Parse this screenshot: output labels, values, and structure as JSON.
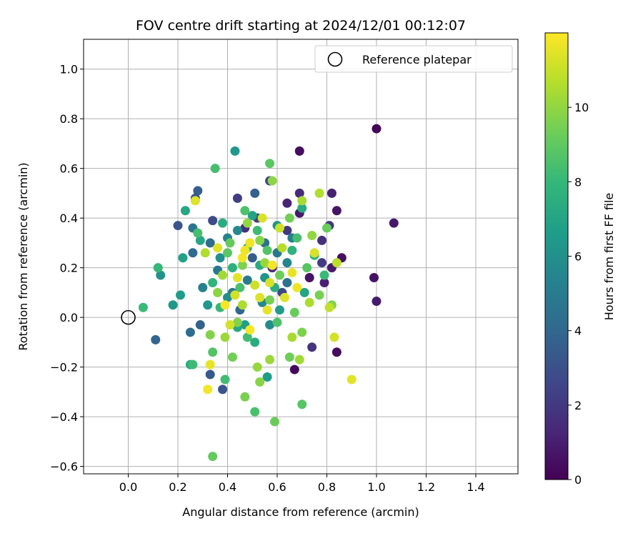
{
  "chart_data": {
    "type": "scatter",
    "title": "FOV centre drift starting at 2024/12/01 00:12:07",
    "xlabel": "Angular distance from reference (arcmin)",
    "ylabel": "Rotation from reference (arcmin)",
    "xlim": [
      -0.18,
      1.57
    ],
    "ylim": [
      -0.63,
      1.12
    ],
    "xticks": [
      0.0,
      0.2,
      0.4,
      0.6,
      0.8,
      1.0,
      1.2,
      1.4
    ],
    "xtick_labels": [
      "0.0",
      "0.2",
      "0.4",
      "0.6",
      "0.8",
      "1.0",
      "1.2",
      "1.4"
    ],
    "yticks": [
      -0.6,
      -0.4,
      -0.2,
      0.0,
      0.2,
      0.4,
      0.6,
      0.8,
      1.0
    ],
    "ytick_labels": [
      "−0.6",
      "−0.4",
      "−0.2",
      "0.0",
      "0.2",
      "0.4",
      "0.6",
      "0.8",
      "1.0"
    ],
    "grid": true,
    "legend": {
      "placement": "top-right",
      "entries": [
        {
          "label": "Reference platepar",
          "marker": "open-circle"
        }
      ]
    },
    "reference_point": {
      "x": 0.0,
      "y": 0.0
    },
    "colorbar": {
      "label": "Hours from first FF file",
      "colormap": "viridis",
      "range": [
        0,
        12
      ],
      "ticks": [
        0,
        2,
        4,
        6,
        8,
        10
      ],
      "tick_labels": [
        "0",
        "2",
        "4",
        "6",
        "8",
        "10"
      ]
    },
    "colormap_stops": [
      "#440154",
      "#482878",
      "#3e4989",
      "#31688e",
      "#26828e",
      "#1f9e89",
      "#35b779",
      "#6ece58",
      "#b5de2b",
      "#fde725"
    ],
    "points": [
      {
        "x": 1.0,
        "y": 0.76,
        "h": 0.1
      },
      {
        "x": 0.69,
        "y": 0.67,
        "h": 0.4
      },
      {
        "x": 1.07,
        "y": 0.38,
        "h": 0.8
      },
      {
        "x": 0.99,
        "y": 0.16,
        "h": 0.6
      },
      {
        "x": 1.0,
        "y": 0.065,
        "h": 0.9
      },
      {
        "x": 0.84,
        "y": 0.43,
        "h": 0.7
      },
      {
        "x": 0.82,
        "y": 0.5,
        "h": 1.1
      },
      {
        "x": 0.86,
        "y": 0.24,
        "h": 0.5
      },
      {
        "x": 0.84,
        "y": -0.14,
        "h": 0.4
      },
      {
        "x": 0.67,
        "y": -0.21,
        "h": 0.3
      },
      {
        "x": 0.73,
        "y": 0.16,
        "h": 0.6
      },
      {
        "x": 0.64,
        "y": 0.46,
        "h": 1.2
      },
      {
        "x": 0.69,
        "y": 0.5,
        "h": 1.5
      },
      {
        "x": 0.69,
        "y": 0.42,
        "h": 0.8
      },
      {
        "x": 0.78,
        "y": 0.31,
        "h": 1.6
      },
      {
        "x": 0.81,
        "y": 0.37,
        "h": 1.9
      },
      {
        "x": 0.82,
        "y": 0.2,
        "h": 0.9
      },
      {
        "x": 0.79,
        "y": 0.14,
        "h": 1.1
      },
      {
        "x": 0.74,
        "y": -0.12,
        "h": 1.8
      },
      {
        "x": 0.78,
        "y": 0.22,
        "h": 2.1
      },
      {
        "x": 0.44,
        "y": 0.48,
        "h": 2.2
      },
      {
        "x": 0.34,
        "y": 0.39,
        "h": 2.7
      },
      {
        "x": 0.57,
        "y": 0.55,
        "h": 2.4
      },
      {
        "x": 0.64,
        "y": 0.35,
        "h": 2.0
      },
      {
        "x": 0.52,
        "y": 0.4,
        "h": 2.3
      },
      {
        "x": 0.47,
        "y": 0.36,
        "h": 1.7
      },
      {
        "x": 0.58,
        "y": 0.2,
        "h": 1.4
      },
      {
        "x": 0.62,
        "y": 0.1,
        "h": 2.6
      },
      {
        "x": 0.2,
        "y": 0.37,
        "h": 3.1
      },
      {
        "x": 0.28,
        "y": 0.51,
        "h": 3.6
      },
      {
        "x": 0.27,
        "y": 0.48,
        "h": 3.3
      },
      {
        "x": 0.51,
        "y": 0.5,
        "h": 3.7
      },
      {
        "x": 0.38,
        "y": -0.29,
        "h": 3.2
      },
      {
        "x": 0.33,
        "y": -0.23,
        "h": 3.4
      },
      {
        "x": 0.11,
        "y": -0.09,
        "h": 3.9
      },
      {
        "x": 0.25,
        "y": -0.06,
        "h": 4.2
      },
      {
        "x": 0.29,
        "y": -0.03,
        "h": 3.8
      },
      {
        "x": 0.33,
        "y": 0.3,
        "h": 4.3
      },
      {
        "x": 0.26,
        "y": 0.36,
        "h": 4.6
      },
      {
        "x": 0.26,
        "y": 0.26,
        "h": 4.1
      },
      {
        "x": 0.42,
        "y": 0.1,
        "h": 4.9
      },
      {
        "x": 0.5,
        "y": 0.24,
        "h": 3.5
      },
      {
        "x": 0.55,
        "y": 0.3,
        "h": 4.4
      },
      {
        "x": 0.6,
        "y": 0.26,
        "h": 4.7
      },
      {
        "x": 0.45,
        "y": 0.03,
        "h": 3.9
      },
      {
        "x": 0.36,
        "y": 0.19,
        "h": 4.8
      },
      {
        "x": 0.66,
        "y": 0.32,
        "h": 5.1
      },
      {
        "x": 0.4,
        "y": 0.32,
        "h": 5.4
      },
      {
        "x": 0.48,
        "y": 0.15,
        "h": 5.0
      },
      {
        "x": 0.54,
        "y": 0.06,
        "h": 5.6
      },
      {
        "x": 0.3,
        "y": 0.12,
        "h": 5.3
      },
      {
        "x": 0.64,
        "y": 0.14,
        "h": 4.5
      },
      {
        "x": 0.57,
        "y": -0.03,
        "h": 5.8
      },
      {
        "x": 0.43,
        "y": 0.67,
        "h": 6.4
      },
      {
        "x": 0.13,
        "y": 0.17,
        "h": 6.1
      },
      {
        "x": 0.21,
        "y": 0.09,
        "h": 6.6
      },
      {
        "x": 0.18,
        "y": 0.05,
        "h": 6.3
      },
      {
        "x": 0.22,
        "y": 0.24,
        "h": 6.8
      },
      {
        "x": 0.44,
        "y": 0.35,
        "h": 5.7
      },
      {
        "x": 0.5,
        "y": 0.41,
        "h": 6.9
      },
      {
        "x": 0.37,
        "y": 0.24,
        "h": 6.0
      },
      {
        "x": 0.55,
        "y": 0.16,
        "h": 6.2
      },
      {
        "x": 0.61,
        "y": 0.03,
        "h": 6.5
      },
      {
        "x": 0.47,
        "y": -0.03,
        "h": 6.7
      },
      {
        "x": 0.4,
        "y": 0.08,
        "h": 5.9
      },
      {
        "x": 0.32,
        "y": 0.05,
        "h": 6.4
      },
      {
        "x": 0.6,
        "y": 0.37,
        "h": 6.1
      },
      {
        "x": 0.64,
        "y": 0.22,
        "h": 5.5
      },
      {
        "x": 0.56,
        "y": -0.24,
        "h": 6.6
      },
      {
        "x": 0.71,
        "y": 0.1,
        "h": 7.0
      },
      {
        "x": 0.25,
        "y": -0.19,
        "h": 7.2
      },
      {
        "x": 0.23,
        "y": 0.43,
        "h": 7.1
      },
      {
        "x": 0.38,
        "y": 0.38,
        "h": 7.4
      },
      {
        "x": 0.48,
        "y": 0.28,
        "h": 7.6
      },
      {
        "x": 0.53,
        "y": 0.21,
        "h": 7.3
      },
      {
        "x": 0.34,
        "y": 0.14,
        "h": 7.8
      },
      {
        "x": 0.59,
        "y": 0.12,
        "h": 7.5
      },
      {
        "x": 0.66,
        "y": 0.27,
        "h": 7.7
      },
      {
        "x": 0.75,
        "y": 0.25,
        "h": 7.9
      },
      {
        "x": 0.44,
        "y": -0.04,
        "h": 7.2
      },
      {
        "x": 0.51,
        "y": -0.1,
        "h": 7.4
      },
      {
        "x": 0.29,
        "y": 0.31,
        "h": 7.1
      },
      {
        "x": 0.42,
        "y": 0.2,
        "h": 7.6
      },
      {
        "x": 0.7,
        "y": 0.44,
        "h": 7.3
      },
      {
        "x": 0.06,
        "y": 0.04,
        "h": 8.1
      },
      {
        "x": 0.35,
        "y": 0.6,
        "h": 8.4
      },
      {
        "x": 0.57,
        "y": 0.62,
        "h": 8.9
      },
      {
        "x": 0.47,
        "y": 0.43,
        "h": 8.6
      },
      {
        "x": 0.26,
        "y": -0.19,
        "h": 8.2
      },
      {
        "x": 0.34,
        "y": -0.14,
        "h": 8.7
      },
      {
        "x": 0.39,
        "y": -0.25,
        "h": 8.3
      },
      {
        "x": 0.51,
        "y": -0.38,
        "h": 8.5
      },
      {
        "x": 0.7,
        "y": -0.35,
        "h": 8.8
      },
      {
        "x": 0.12,
        "y": 0.2,
        "h": 8.0
      },
      {
        "x": 0.28,
        "y": 0.34,
        "h": 8.4
      },
      {
        "x": 0.4,
        "y": 0.26,
        "h": 8.9
      },
      {
        "x": 0.52,
        "y": 0.35,
        "h": 8.2
      },
      {
        "x": 0.56,
        "y": 0.27,
        "h": 8.7
      },
      {
        "x": 0.45,
        "y": 0.12,
        "h": 8.5
      },
      {
        "x": 0.37,
        "y": 0.04,
        "h": 8.0
      },
      {
        "x": 0.6,
        "y": -0.02,
        "h": 8.6
      },
      {
        "x": 0.48,
        "y": -0.08,
        "h": 8.3
      },
      {
        "x": 0.72,
        "y": 0.2,
        "h": 8.8
      },
      {
        "x": 0.79,
        "y": 0.17,
        "h": 8.1
      },
      {
        "x": 0.68,
        "y": 0.32,
        "h": 8.4
      },
      {
        "x": 0.59,
        "y": -0.42,
        "h": 9.2
      },
      {
        "x": 0.47,
        "y": -0.32,
        "h": 9.5
      },
      {
        "x": 0.34,
        "y": -0.56,
        "h": 9.1
      },
      {
        "x": 0.33,
        "y": -0.07,
        "h": 9.7
      },
      {
        "x": 0.42,
        "y": -0.16,
        "h": 9.4
      },
      {
        "x": 0.53,
        "y": -0.26,
        "h": 9.8
      },
      {
        "x": 0.65,
        "y": -0.16,
        "h": 9.3
      },
      {
        "x": 0.7,
        "y": -0.06,
        "h": 9.6
      },
      {
        "x": 0.58,
        "y": 0.55,
        "h": 9.9
      },
      {
        "x": 0.8,
        "y": 0.36,
        "h": 9.2
      },
      {
        "x": 0.77,
        "y": 0.09,
        "h": 9.5
      },
      {
        "x": 0.82,
        "y": 0.05,
        "h": 9.7
      },
      {
        "x": 0.65,
        "y": 0.4,
        "h": 9.4
      },
      {
        "x": 0.53,
        "y": 0.31,
        "h": 9.8
      },
      {
        "x": 0.41,
        "y": 0.3,
        "h": 9.1
      },
      {
        "x": 0.46,
        "y": 0.21,
        "h": 9.6
      },
      {
        "x": 0.61,
        "y": 0.17,
        "h": 9.3
      },
      {
        "x": 0.36,
        "y": 0.1,
        "h": 9.9
      },
      {
        "x": 0.57,
        "y": 0.07,
        "h": 9.5
      },
      {
        "x": 0.67,
        "y": 0.02,
        "h": 9.2
      },
      {
        "x": 0.44,
        "y": -0.02,
        "h": 9.7
      },
      {
        "x": 0.52,
        "y": -0.2,
        "h": 10.1
      },
      {
        "x": 0.69,
        "y": -0.17,
        "h": 10.3
      },
      {
        "x": 0.74,
        "y": 0.33,
        "h": 10.0
      },
      {
        "x": 0.7,
        "y": 0.47,
        "h": 10.4
      },
      {
        "x": 0.77,
        "y": 0.5,
        "h": 10.6
      },
      {
        "x": 0.39,
        "y": -0.08,
        "h": 10.2
      },
      {
        "x": 0.46,
        "y": 0.05,
        "h": 10.5
      },
      {
        "x": 0.55,
        "y": 0.22,
        "h": 10.1
      },
      {
        "x": 0.62,
        "y": 0.28,
        "h": 10.7
      },
      {
        "x": 0.38,
        "y": 0.17,
        "h": 10.3
      },
      {
        "x": 0.31,
        "y": 0.26,
        "h": 10.6
      },
      {
        "x": 0.48,
        "y": 0.38,
        "h": 10.0
      },
      {
        "x": 0.66,
        "y": -0.08,
        "h": 10.4
      },
      {
        "x": 0.84,
        "y": 0.22,
        "h": 10.8
      },
      {
        "x": 0.57,
        "y": -0.17,
        "h": 10.2
      },
      {
        "x": 0.73,
        "y": 0.06,
        "h": 10.5
      },
      {
        "x": 0.81,
        "y": 0.04,
        "h": 10.9
      },
      {
        "x": 0.27,
        "y": 0.47,
        "h": 11.4
      },
      {
        "x": 0.33,
        "y": -0.19,
        "h": 11.6
      },
      {
        "x": 0.32,
        "y": -0.29,
        "h": 11.8
      },
      {
        "x": 0.9,
        "y": -0.25,
        "h": 11.5
      },
      {
        "x": 0.83,
        "y": -0.08,
        "h": 11.2
      },
      {
        "x": 0.49,
        "y": 0.3,
        "h": 11.7
      },
      {
        "x": 0.54,
        "y": 0.4,
        "h": 11.3
      },
      {
        "x": 0.39,
        "y": 0.05,
        "h": 11.9
      },
      {
        "x": 0.44,
        "y": 0.16,
        "h": 11.5
      },
      {
        "x": 0.51,
        "y": 0.13,
        "h": 11.1
      },
      {
        "x": 0.58,
        "y": 0.21,
        "h": 11.8
      },
      {
        "x": 0.63,
        "y": 0.08,
        "h": 11.4
      },
      {
        "x": 0.56,
        "y": 0.03,
        "h": 11.6
      },
      {
        "x": 0.41,
        "y": -0.03,
        "h": 11.2
      },
      {
        "x": 0.68,
        "y": 0.12,
        "h": 11.7
      },
      {
        "x": 0.75,
        "y": 0.26,
        "h": 11.3
      },
      {
        "x": 0.49,
        "y": -0.05,
        "h": 11.9
      },
      {
        "x": 0.36,
        "y": 0.28,
        "h": 11.5
      },
      {
        "x": 0.61,
        "y": 0.36,
        "h": 11.1
      },
      {
        "x": 0.46,
        "y": 0.24,
        "h": 11.8
      },
      {
        "x": 0.53,
        "y": 0.08,
        "h": 11.4
      },
      {
        "x": 0.66,
        "y": 0.18,
        "h": 11.6
      },
      {
        "x": 0.43,
        "y": 0.09,
        "h": 11.2
      },
      {
        "x": 0.47,
        "y": 0.27,
        "h": 11.7
      },
      {
        "x": 0.57,
        "y": 0.14,
        "h": 11.3
      }
    ]
  }
}
